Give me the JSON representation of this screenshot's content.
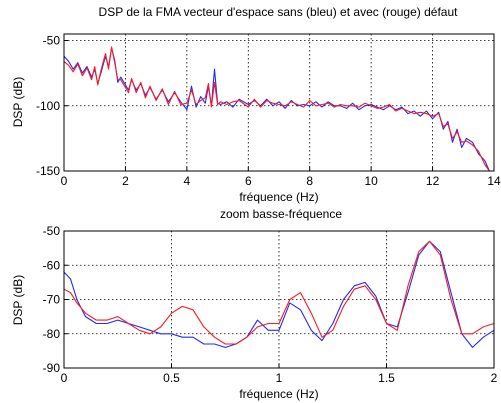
{
  "chart_data": [
    {
      "type": "line",
      "title": "DSP de la FMA vecteur d'espace sans (bleu) et avec (rouge) défaut",
      "xlabel": "fréquence (Hz)",
      "ylabel": "DSP (dB)",
      "xlim": [
        0,
        14
      ],
      "ylim": [
        -150,
        -45
      ],
      "xticks": [
        0,
        2,
        4,
        6,
        8,
        10,
        12,
        14
      ],
      "yticks": [
        -50,
        -100,
        -150
      ],
      "grid": true,
      "series": [
        {
          "color": "#1f2bff",
          "x": [
            0,
            0.15,
            0.3,
            0.45,
            0.6,
            0.75,
            0.9,
            1.0,
            1.1,
            1.2,
            1.35,
            1.45,
            1.55,
            1.65,
            1.75,
            1.85,
            2.0,
            2.1,
            2.2,
            2.35,
            2.5,
            2.65,
            2.8,
            3.0,
            3.2,
            3.4,
            3.6,
            3.8,
            4.0,
            4.15,
            4.3,
            4.45,
            4.6,
            4.7,
            4.8,
            4.9,
            5.0,
            5.1,
            5.3,
            5.5,
            5.7,
            6.0,
            6.2,
            6.4,
            6.6,
            6.8,
            7.0,
            7.2,
            7.4,
            7.6,
            7.8,
            8.0,
            8.2,
            8.4,
            8.6,
            8.8,
            9.0,
            9.2,
            9.4,
            9.6,
            9.8,
            10.0,
            10.2,
            10.4,
            10.6,
            10.8,
            11.0,
            11.2,
            11.4,
            11.6,
            11.8,
            12.0,
            12.2,
            12.35,
            12.5,
            12.65,
            12.8,
            12.95,
            13.1,
            13.3,
            13.5,
            13.7,
            13.85
          ],
          "y": [
            -62,
            -66,
            -72,
            -67,
            -75,
            -70,
            -78,
            -72,
            -83,
            -75,
            -62,
            -70,
            -56,
            -65,
            -82,
            -78,
            -84,
            -88,
            -80,
            -88,
            -83,
            -92,
            -86,
            -95,
            -88,
            -97,
            -90,
            -97,
            -103,
            -85,
            -101,
            -93,
            -98,
            -85,
            -100,
            -72,
            -98,
            -99,
            -97,
            -101,
            -95,
            -99,
            -96,
            -100,
            -95,
            -100,
            -97,
            -102,
            -96,
            -100,
            -99,
            -100,
            -97,
            -101,
            -97,
            -100,
            -100,
            -102,
            -98,
            -103,
            -100,
            -99,
            -101,
            -103,
            -100,
            -103,
            -101,
            -106,
            -104,
            -108,
            -104,
            -110,
            -105,
            -118,
            -112,
            -128,
            -118,
            -132,
            -125,
            -128,
            -137,
            -142,
            -150
          ]
        },
        {
          "color": "#ff1a1a",
          "x": [
            0,
            0.15,
            0.3,
            0.45,
            0.6,
            0.75,
            0.9,
            1.0,
            1.1,
            1.2,
            1.35,
            1.45,
            1.55,
            1.65,
            1.75,
            1.85,
            2.0,
            2.1,
            2.2,
            2.35,
            2.5,
            2.65,
            2.8,
            3.0,
            3.2,
            3.4,
            3.6,
            3.8,
            4.0,
            4.15,
            4.3,
            4.45,
            4.6,
            4.7,
            4.8,
            4.9,
            5.0,
            5.1,
            5.3,
            5.5,
            5.7,
            6.0,
            6.2,
            6.4,
            6.6,
            6.8,
            7.0,
            7.2,
            7.4,
            7.6,
            7.8,
            8.0,
            8.2,
            8.4,
            8.6,
            8.8,
            9.0,
            9.2,
            9.4,
            9.6,
            9.8,
            10.0,
            10.2,
            10.4,
            10.6,
            10.8,
            11.0,
            11.2,
            11.4,
            11.6,
            11.8,
            12.0,
            12.2,
            12.35,
            12.5,
            12.65,
            12.8,
            12.95,
            13.1,
            13.3,
            13.5,
            13.7,
            13.85
          ],
          "y": [
            -66,
            -69,
            -74,
            -68,
            -77,
            -71,
            -80,
            -70,
            -84,
            -73,
            -60,
            -72,
            -55,
            -67,
            -80,
            -80,
            -86,
            -90,
            -79,
            -90,
            -82,
            -94,
            -85,
            -96,
            -87,
            -99,
            -89,
            -99,
            -98,
            -88,
            -99,
            -96,
            -94,
            -83,
            -101,
            -82,
            -99,
            -97,
            -99,
            -97,
            -96,
            -101,
            -95,
            -101,
            -96,
            -98,
            -99,
            -100,
            -97,
            -99,
            -101,
            -96,
            -100,
            -99,
            -98,
            -101,
            -99,
            -100,
            -100,
            -101,
            -98,
            -100,
            -102,
            -101,
            -99,
            -104,
            -102,
            -104,
            -106,
            -105,
            -106,
            -108,
            -106,
            -116,
            -114,
            -125,
            -120,
            -128,
            -127,
            -130,
            -135,
            -145,
            -150
          ]
        }
      ]
    },
    {
      "type": "line",
      "title": "zoom basse-fréquence",
      "xlabel": "fréquence (Hz)",
      "ylabel": "DSP (dB)",
      "xlim": [
        0,
        2
      ],
      "ylim": [
        -90,
        -50
      ],
      "xticks": [
        0,
        0.5,
        1,
        1.5,
        2
      ],
      "xtick_labels": [
        "0",
        "0.5",
        "1",
        "1.5",
        "2"
      ],
      "yticks": [
        -50,
        -60,
        -70,
        -80,
        -90
      ],
      "grid": true,
      "series": [
        {
          "color": "#1f2bff",
          "x": [
            0,
            0.03,
            0.06,
            0.1,
            0.15,
            0.2,
            0.25,
            0.3,
            0.35,
            0.4,
            0.45,
            0.5,
            0.55,
            0.6,
            0.65,
            0.7,
            0.75,
            0.8,
            0.85,
            0.9,
            0.95,
            1.0,
            1.05,
            1.1,
            1.15,
            1.2,
            1.25,
            1.3,
            1.35,
            1.4,
            1.45,
            1.5,
            1.55,
            1.6,
            1.65,
            1.7,
            1.75,
            1.8,
            1.85,
            1.9,
            1.95,
            2.0
          ],
          "y": [
            -62,
            -64,
            -70,
            -75,
            -77,
            -77,
            -76,
            -77,
            -78,
            -79,
            -80,
            -80,
            -81,
            -81,
            -83,
            -83,
            -84,
            -83,
            -81,
            -76,
            -79,
            -79,
            -71,
            -73,
            -79,
            -82,
            -77,
            -70,
            -66,
            -65,
            -69,
            -77,
            -78,
            -68,
            -57,
            -53,
            -56,
            -68,
            -80,
            -84,
            -81,
            -79
          ]
        },
        {
          "color": "#ff1a1a",
          "x": [
            0,
            0.03,
            0.06,
            0.1,
            0.15,
            0.2,
            0.25,
            0.3,
            0.35,
            0.4,
            0.45,
            0.5,
            0.55,
            0.6,
            0.65,
            0.7,
            0.75,
            0.8,
            0.85,
            0.9,
            0.95,
            1.0,
            1.05,
            1.1,
            1.15,
            1.2,
            1.25,
            1.3,
            1.35,
            1.4,
            1.45,
            1.5,
            1.55,
            1.6,
            1.65,
            1.7,
            1.75,
            1.8,
            1.85,
            1.9,
            1.95,
            2.0
          ],
          "y": [
            -67,
            -68,
            -71,
            -74,
            -76,
            -76,
            -75,
            -77,
            -79,
            -80,
            -78,
            -74,
            -72,
            -73,
            -78,
            -81,
            -83,
            -83,
            -81,
            -78,
            -77,
            -77,
            -70,
            -68,
            -74,
            -81,
            -79,
            -72,
            -67,
            -66,
            -70,
            -77,
            -79,
            -66,
            -56,
            -53,
            -57,
            -70,
            -80,
            -80,
            -78,
            -77
          ]
        }
      ]
    }
  ]
}
